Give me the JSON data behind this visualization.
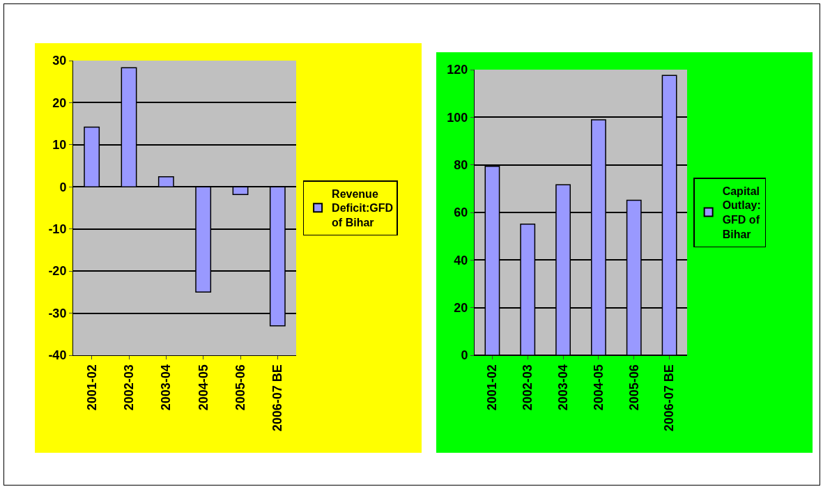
{
  "chart_data": [
    {
      "type": "bar",
      "categories": [
        "2001-02",
        "2002-03",
        "2003-04",
        "2004-05",
        "2005-06",
        "2006-07 BE"
      ],
      "series": [
        {
          "name": "Revenue Deficit:GFD of Bihar",
          "color": "#9999ff",
          "values": [
            14.2,
            28.3,
            2.4,
            -25,
            -1.8,
            -33
          ]
        }
      ],
      "ylim": [
        -40,
        30
      ],
      "yticks": [
        -40,
        -30,
        -20,
        -10,
        0,
        10,
        20,
        30
      ],
      "grid": "y",
      "legend": "right"
    },
    {
      "type": "bar",
      "categories": [
        "2001-02",
        "2002-03",
        "2003-04",
        "2004-05",
        "2005-06",
        "2006-07 BE"
      ],
      "series": [
        {
          "name": "Capital Outlay: GFD of Bihar",
          "color": "#9999ff",
          "values": [
            79.4,
            55.1,
            71.6,
            98.9,
            65.1,
            117.6
          ]
        }
      ],
      "ylim": [
        0,
        120
      ],
      "yticks": [
        0,
        20,
        40,
        60,
        80,
        100,
        120
      ],
      "grid": "y",
      "legend": "right"
    }
  ]
}
